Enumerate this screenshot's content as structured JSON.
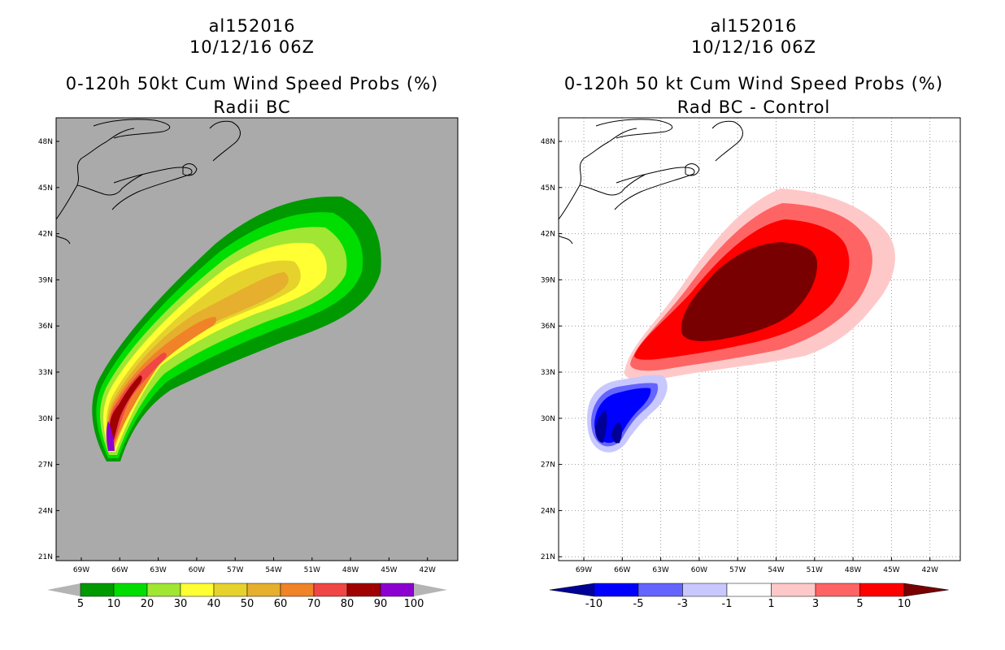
{
  "left": {
    "storm_id": "al152016",
    "datetime": "10/12/16 06Z",
    "title": "0-120h 50kt Cum Wind Speed Probs (%)",
    "subtitle": "Radii BC",
    "background_color": "#aaaaaa",
    "legend": {
      "labels": [
        "5",
        "10",
        "20",
        "30",
        "40",
        "50",
        "60",
        "70",
        "80",
        "90",
        "100"
      ],
      "colors": [
        "#009900",
        "#00dd00",
        "#a0e632",
        "#ffff33",
        "#e6d22d",
        "#e6af2d",
        "#f08228",
        "#f04646",
        "#a00000",
        "#8c00d2"
      ]
    }
  },
  "right": {
    "storm_id": "al152016",
    "datetime": "10/12/16 06Z",
    "title": "0-120h 50 kt Cum Wind Speed Probs (%)",
    "subtitle": "Rad BC - Control",
    "background_color": "#ffffff",
    "legend": {
      "labels": [
        "-10",
        "-5",
        "-3",
        "-1",
        "1",
        "3",
        "5",
        "10"
      ],
      "colors": [
        "#000096",
        "#0000ff",
        "#6464ff",
        "#c8c8ff",
        "#ffffff",
        "#ffc8c8",
        "#ff6464",
        "#ff0000",
        "#780000"
      ]
    }
  },
  "axes": {
    "lat_labels": [
      "48N",
      "45N",
      "42N",
      "39N",
      "36N",
      "33N",
      "30N",
      "27N",
      "24N",
      "21N"
    ],
    "lon_labels": [
      "69W",
      "66W",
      "63W",
      "60W",
      "57W",
      "54W",
      "51W",
      "48W",
      "45W",
      "42W"
    ]
  }
}
